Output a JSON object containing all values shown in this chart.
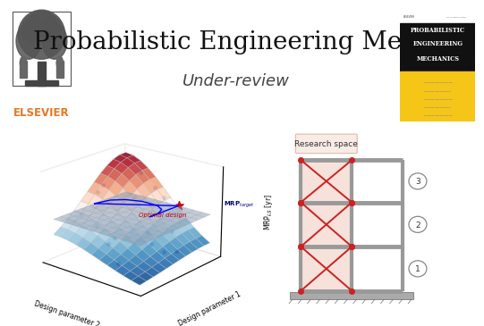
{
  "title": "Probabilistic Engineering Mech.",
  "subtitle": "Under-review",
  "title_fontsize": 20,
  "subtitle_fontsize": 13,
  "elsevier_color": "#E87722",
  "background_color": "#ffffff",
  "journal_cover_bg": "#f5c518",
  "surface_ylabel": "MRP$_{LS}$ [yr]",
  "surface_xlabel": "Design parameter 2",
  "surface_ylabel2": "Design parameter 1",
  "surface_annotation_target": "MRP$_{target}$",
  "surface_annotation_optimal": "Optimal design",
  "research_space_label": "Research space",
  "frame_floors": [
    1,
    2,
    3
  ],
  "frame_bg_color": "#f5ddd5",
  "frame_brace_color": "#cc2222",
  "col_color": "#999999",
  "dot_color": "#223399",
  "opt_color": "#cc0000"
}
